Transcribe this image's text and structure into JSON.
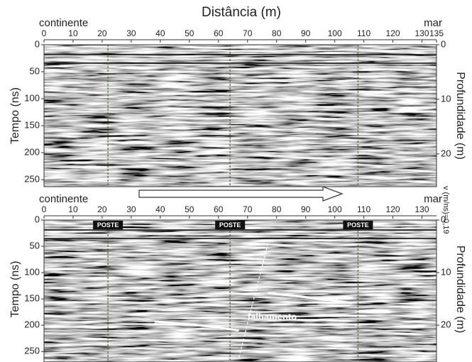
{
  "chart_data": [
    {
      "type": "radargram",
      "title": "Distância (m)",
      "left_label": "continente",
      "right_label": "mar",
      "ylabel": "Tempo (ns)",
      "y2label": "Profundidade (m)",
      "xlim": [
        0,
        135
      ],
      "xticks": [
        0,
        10,
        20,
        30,
        40,
        50,
        60,
        70,
        80,
        90,
        100,
        110,
        120,
        130,
        135
      ],
      "ylim": [
        0,
        263
      ],
      "yticks": [
        0,
        50,
        100,
        150,
        200,
        250
      ],
      "y2lim": [
        0,
        26
      ],
      "y2ticks": [
        0,
        10,
        20
      ],
      "side_note": "v (m/ns)=0,19"
    },
    {
      "type": "radargram",
      "left_label": "continente",
      "right_label": "mar",
      "ylabel": "Tempo (ns)",
      "y2label": "Profundidade (m)",
      "xlim": [
        0,
        135
      ],
      "xticks": [
        0,
        10,
        20,
        30,
        40,
        50,
        60,
        70,
        80,
        90,
        100,
        110,
        120,
        130
      ],
      "ylim": [
        0,
        270
      ],
      "yticks": [
        0,
        50,
        100,
        150,
        200,
        250
      ],
      "y2lim": [
        0,
        27
      ],
      "y2ticks": [
        0,
        10,
        20
      ],
      "annotations": [
        "POSTE",
        "POSTE",
        "POSTE",
        "falhamento"
      ]
    }
  ]
}
